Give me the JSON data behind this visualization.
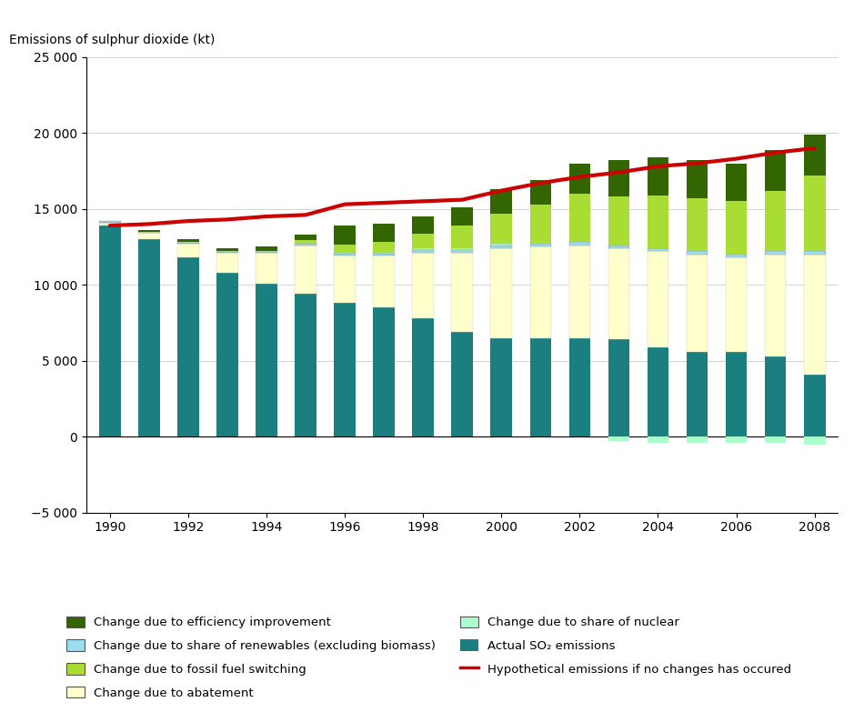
{
  "years": [
    1990,
    1991,
    1992,
    1993,
    1994,
    1995,
    1996,
    1997,
    1998,
    1999,
    2000,
    2001,
    2002,
    2003,
    2004,
    2005,
    2006,
    2007,
    2008
  ],
  "actual_so2": [
    13900,
    13000,
    11800,
    10800,
    10100,
    9400,
    8800,
    8500,
    7800,
    6900,
    6500,
    6500,
    6500,
    6400,
    5900,
    5600,
    5600,
    5300,
    4100
  ],
  "abatement": [
    200,
    400,
    900,
    1300,
    2000,
    3200,
    3100,
    3400,
    4300,
    5200,
    5900,
    6000,
    6100,
    6000,
    6300,
    6400,
    6200,
    6700,
    7900
  ],
  "renewables": [
    50,
    50,
    80,
    80,
    80,
    80,
    150,
    150,
    200,
    200,
    200,
    200,
    200,
    200,
    200,
    200,
    200,
    200,
    200
  ],
  "nuclear": [
    50,
    50,
    50,
    50,
    50,
    50,
    80,
    80,
    80,
    80,
    80,
    80,
    0,
    -300,
    -400,
    -400,
    -400,
    -400,
    -500
  ],
  "fossil_fuel": [
    0,
    0,
    0,
    0,
    0,
    200,
    500,
    700,
    1000,
    1500,
    2000,
    2500,
    3200,
    3200,
    3500,
    3500,
    3500,
    4000,
    5000
  ],
  "efficiency": [
    0,
    100,
    200,
    200,
    300,
    400,
    1300,
    1200,
    1100,
    1200,
    1600,
    1600,
    2000,
    2400,
    2500,
    2500,
    2500,
    2700,
    2700
  ],
  "hypothetical": [
    13900,
    14000,
    14200,
    14300,
    14500,
    14600,
    15300,
    15400,
    15500,
    15600,
    16200,
    16700,
    17100,
    17400,
    17800,
    18000,
    18300,
    18700,
    19000
  ],
  "colors": {
    "actual_so2": "#1b7f7f",
    "abatement": "#ffffcc",
    "renewables": "#99ddee",
    "nuclear": "#aaffcc",
    "fossil_fuel": "#aadd33",
    "efficiency": "#336600",
    "hypothetical": "#cc0000"
  },
  "ylabel": "Emissions of sulphur dioxide (kt)",
  "ylim": [
    -5000,
    25000
  ],
  "yticks": [
    -5000,
    0,
    5000,
    10000,
    15000,
    20000,
    25000
  ],
  "ytick_labels": [
    "−5 000",
    "0",
    "5 000",
    "10 000",
    "15 000",
    "20 000",
    "25 000"
  ],
  "legend_labels": {
    "efficiency": "Change due to efficiency improvement",
    "renewables": "Change due to share of renewables (excluding biomass)",
    "fossil_fuel": "Change due to fossil fuel switching",
    "abatement": "Change due to abatement",
    "nuclear": "Change due to share of nuclear",
    "actual_so2": "Actual SO₂ emissions",
    "hypothetical": "Hypothetical emissions if no changes has occured"
  }
}
